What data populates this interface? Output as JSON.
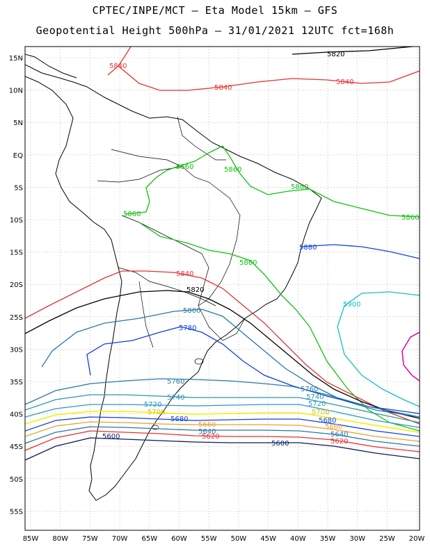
{
  "header": {
    "line1": "CPTEC/INPE/MCT –  Eta Model 15km – GFS",
    "line2": "Geopotential Height 500hPa – 31/01/2021 12UTC fct=168h"
  },
  "axes": {
    "lat_labels": [
      "15N",
      "10N",
      "5N",
      "EQ",
      "5S",
      "10S",
      "15S",
      "20S",
      "25S",
      "30S",
      "35S",
      "40S",
      "45S",
      "50S",
      "55S"
    ],
    "lon_labels": [
      "85W",
      "80W",
      "75W",
      "70W",
      "65W",
      "60W",
      "55W",
      "50W",
      "45W",
      "40W",
      "35W",
      "30W",
      "25W",
      "20W"
    ]
  },
  "contours": [
    {
      "value": "5840",
      "color": "#e83030"
    },
    {
      "value": "5820",
      "color": "#000000"
    },
    {
      "value": "5860",
      "color": "#10c010"
    },
    {
      "value": "5880",
      "color": "#1040e0"
    },
    {
      "value": "5900",
      "color": "#10c0c0"
    },
    {
      "value": "5800",
      "color": "#2878a8"
    },
    {
      "value": "5780",
      "color": "#1040e0"
    },
    {
      "value": "5760",
      "color": "#2878a8"
    },
    {
      "value": "5740",
      "color": "#2898a8"
    },
    {
      "value": "5720",
      "color": "#2898c8"
    },
    {
      "value": "5700",
      "color": "#f0f000"
    },
    {
      "value": "5680",
      "color": "#1040e0"
    },
    {
      "value": "5660",
      "color": "#e8a030"
    },
    {
      "value": "5640",
      "color": "#2878a8"
    },
    {
      "value": "5620",
      "color": "#e83030"
    },
    {
      "value": "5600",
      "color": "#0a1a60"
    }
  ],
  "extra_color": "#e000a0"
}
